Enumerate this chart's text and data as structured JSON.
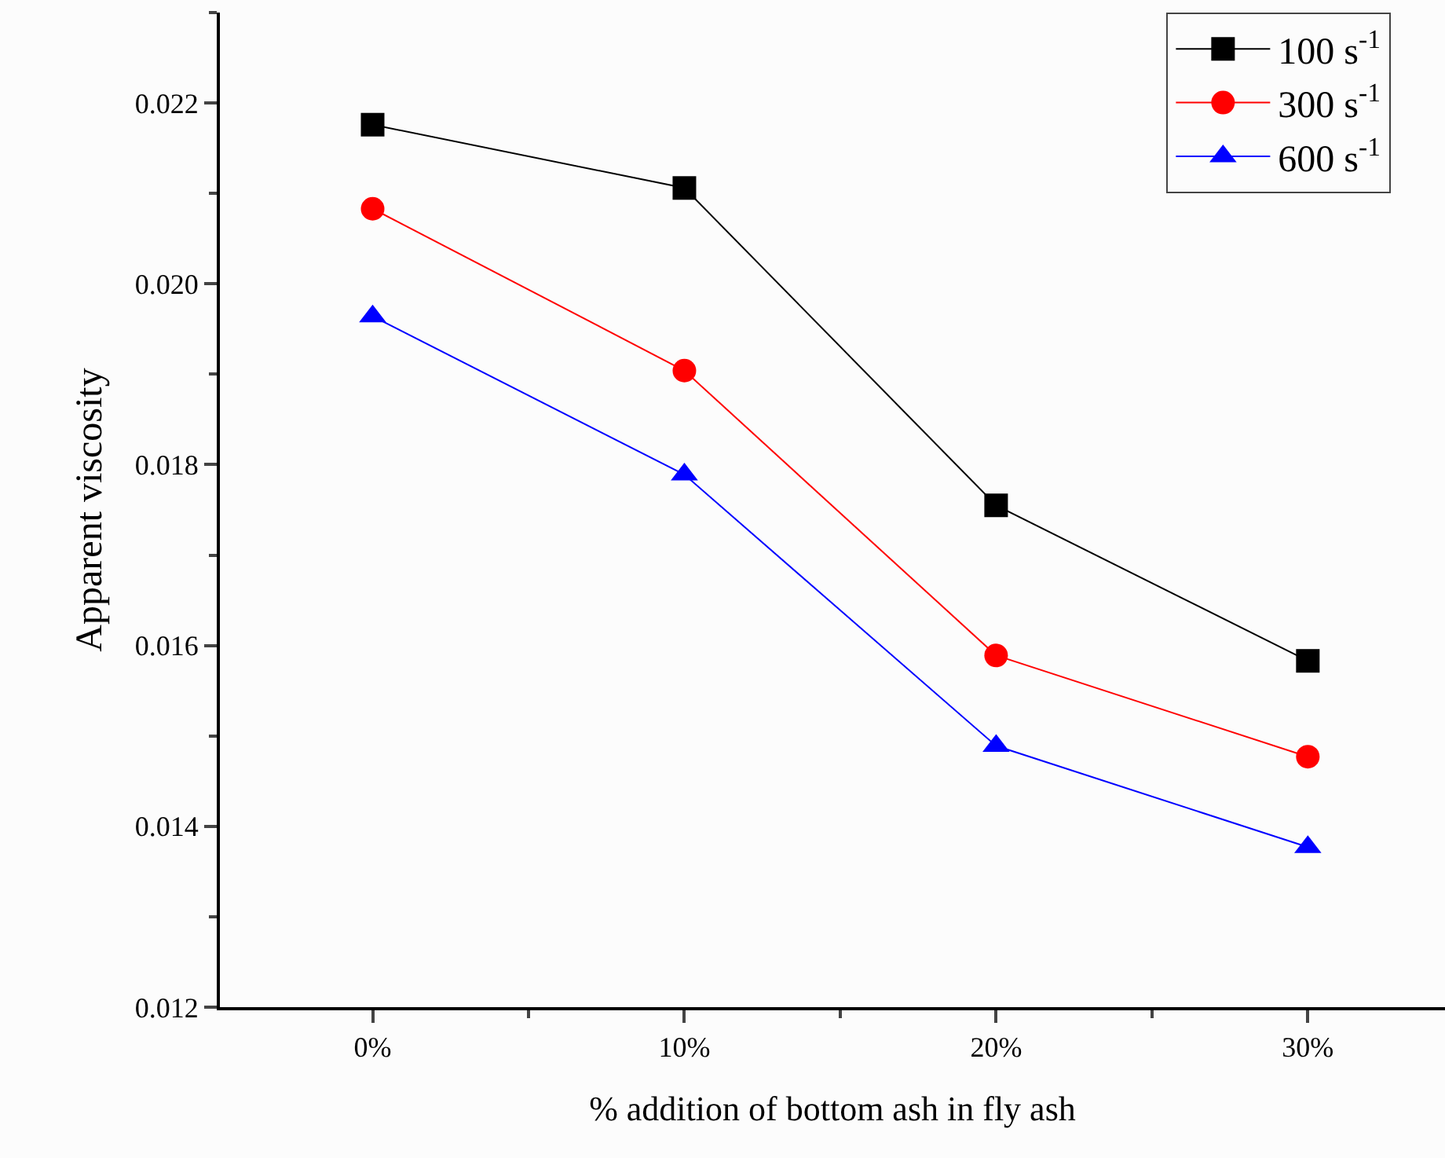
{
  "chart_data": {
    "type": "line",
    "xlabel": "% addition of bottom ash in fly ash",
    "ylabel": "Apparent viscosity",
    "categories": [
      "0%",
      "10%",
      "20%",
      "30%"
    ],
    "series": [
      {
        "name": "100 s$^{-1}$",
        "color": "#000000",
        "marker": "square",
        "values": [
          0.02176,
          0.02106,
          0.01755,
          0.01583
        ]
      },
      {
        "name": "300 s$^{-1}$",
        "color": "#ff0000",
        "marker": "circle",
        "values": [
          0.02083,
          0.01904,
          0.01589,
          0.01477
        ]
      },
      {
        "name": "600 s$^{-1}$",
        "color": "#0000ff",
        "marker": "triangle",
        "values": [
          0.01964,
          0.01789,
          0.01489,
          0.01377
        ]
      }
    ],
    "ylim": [
      0.012,
      0.023
    ],
    "yticks": [
      0.012,
      0.014,
      0.016,
      0.018,
      {
        "value": 0.02,
        "label": "0.020"
      },
      0.022
    ],
    "grid": false,
    "legend": "top right",
    "line_style": "solid"
  }
}
